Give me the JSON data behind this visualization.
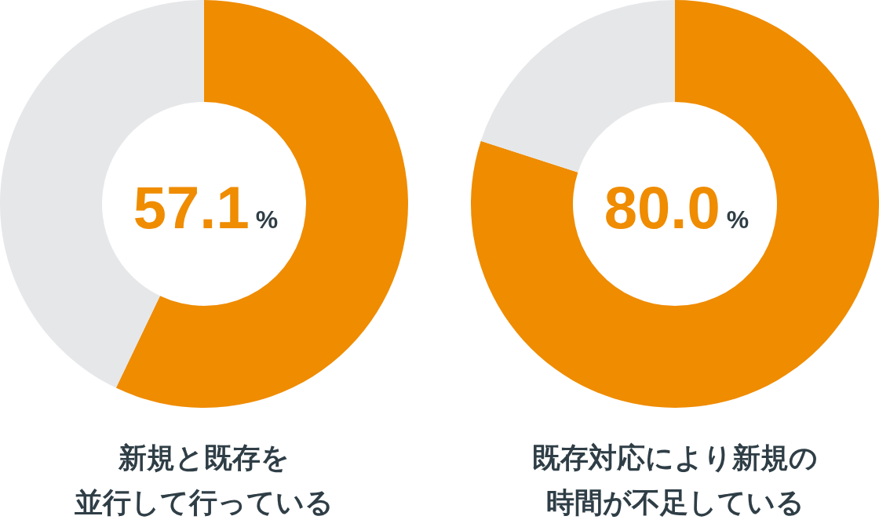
{
  "chart_data": [
    {
      "type": "donut",
      "title": "新規と既存を並行して行っている",
      "categories": [
        null,
        null
      ],
      "values": [
        57.1,
        42.9
      ],
      "colors": [
        "#ef8c00",
        "#e6e7e9"
      ],
      "value_labels": [
        "57.1%",
        null
      ]
    },
    {
      "type": "donut",
      "title": "既存対応により新規の時間が不足している",
      "categories": [
        null,
        null
      ],
      "values": [
        80.0,
        20.0
      ],
      "colors": [
        "#ef8c00",
        "#e6e7e9"
      ],
      "value_labels": [
        "80.0%",
        null
      ]
    }
  ]
}
